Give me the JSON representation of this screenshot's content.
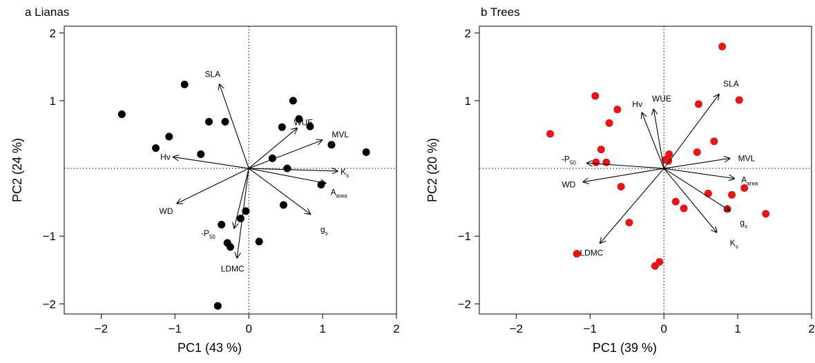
{
  "chart_data": [
    {
      "type": "scatter",
      "panel_title": "a Lianas",
      "xlabel": "PC1 (43 %)",
      "ylabel": "PC2 (24 %)",
      "xlim": [
        -2.5,
        2.0
      ],
      "ylim": [
        -2.15,
        2.1
      ],
      "xticks": [
        -2,
        -1,
        0,
        1,
        2
      ],
      "yticks": [
        -2,
        -1,
        1,
        2
      ],
      "point_color": "#000000",
      "points": [
        {
          "x": -1.72,
          "y": 0.8
        },
        {
          "x": -0.87,
          "y": 1.24
        },
        {
          "x": -1.08,
          "y": 0.47
        },
        {
          "x": -1.26,
          "y": 0.3
        },
        {
          "x": -0.54,
          "y": 0.69
        },
        {
          "x": -0.32,
          "y": 0.69
        },
        {
          "x": -0.65,
          "y": 0.21
        },
        {
          "x": 0.6,
          "y": 1.0
        },
        {
          "x": 0.45,
          "y": 0.61
        },
        {
          "x": 0.68,
          "y": 0.73
        },
        {
          "x": 0.83,
          "y": 0.62
        },
        {
          "x": 1.12,
          "y": 0.35
        },
        {
          "x": 1.59,
          "y": 0.24
        },
        {
          "x": 0.32,
          "y": 0.15
        },
        {
          "x": 0.52,
          "y": 0.0
        },
        {
          "x": 0.98,
          "y": -0.24
        },
        {
          "x": 0.47,
          "y": -0.54
        },
        {
          "x": -0.04,
          "y": -0.63
        },
        {
          "x": -0.11,
          "y": -0.74
        },
        {
          "x": -0.37,
          "y": -0.83
        },
        {
          "x": -0.29,
          "y": -1.1
        },
        {
          "x": -0.25,
          "y": -1.16
        },
        {
          "x": 0.14,
          "y": -1.08
        },
        {
          "x": -0.42,
          "y": -2.03
        }
      ],
      "loadings": [
        {
          "label": "SLA",
          "x": -0.4,
          "y": 1.25,
          "lx": -0.49,
          "ly": 1.39
        },
        {
          "label": "WUE",
          "x": 0.66,
          "y": 0.6,
          "lx": 0.74,
          "ly": 0.68
        },
        {
          "label": "MVL",
          "x": 1.0,
          "y": 0.42,
          "lx": 1.24,
          "ly": 0.5
        },
        {
          "label": "K",
          "sub": "s",
          "x": 1.21,
          "y": -0.04,
          "lx": 1.3,
          "ly": -0.05
        },
        {
          "label": "A",
          "sub": "area",
          "x": 1.05,
          "y": -0.22,
          "lx": 1.22,
          "ly": -0.35
        },
        {
          "label": "g",
          "sub": "s",
          "x": 0.84,
          "y": -0.68,
          "lx": 1.02,
          "ly": -0.9
        },
        {
          "label": "Hv",
          "x": -1.03,
          "y": 0.17,
          "lx": -1.13,
          "ly": 0.17
        },
        {
          "label": "WD",
          "x": -0.98,
          "y": -0.52,
          "lx": -1.12,
          "ly": -0.63
        },
        {
          "label": "-P",
          "sub": "50",
          "x": -0.2,
          "y": -0.89,
          "lx": -0.55,
          "ly": -0.96
        },
        {
          "label": "LDMC",
          "x": -0.16,
          "y": -1.33,
          "lx": -0.22,
          "ly": -1.48
        }
      ]
    },
    {
      "type": "scatter",
      "panel_title": "b Trees",
      "xlabel": "PC1 (39 %)",
      "ylabel": "PC2 (20 %)",
      "xlim": [
        -2.5,
        2.0
      ],
      "ylim": [
        -2.15,
        2.1
      ],
      "xticks": [
        -2,
        -1,
        0,
        1,
        2
      ],
      "yticks": [
        -2,
        -1,
        1,
        2
      ],
      "point_color": "#e81416",
      "points": [
        {
          "x": 0.79,
          "y": 1.8
        },
        {
          "x": 1.02,
          "y": 1.01
        },
        {
          "x": 0.47,
          "y": 0.95
        },
        {
          "x": -0.93,
          "y": 1.07
        },
        {
          "x": -0.63,
          "y": 0.87
        },
        {
          "x": -0.74,
          "y": 0.67
        },
        {
          "x": -1.54,
          "y": 0.51
        },
        {
          "x": -0.85,
          "y": 0.28
        },
        {
          "x": -0.92,
          "y": 0.09
        },
        {
          "x": -0.78,
          "y": 0.09
        },
        {
          "x": 0.07,
          "y": 0.21
        },
        {
          "x": 0.06,
          "y": 0.11
        },
        {
          "x": 0.02,
          "y": 0.13
        },
        {
          "x": 0.45,
          "y": 0.24
        },
        {
          "x": 0.68,
          "y": 0.4
        },
        {
          "x": -0.58,
          "y": -0.27
        },
        {
          "x": 0.6,
          "y": -0.37
        },
        {
          "x": 0.92,
          "y": -0.39
        },
        {
          "x": 1.09,
          "y": -0.29
        },
        {
          "x": 0.16,
          "y": -0.49
        },
        {
          "x": 0.27,
          "y": -0.59
        },
        {
          "x": 0.86,
          "y": -0.6
        },
        {
          "x": 1.38,
          "y": -0.67
        },
        {
          "x": -0.47,
          "y": -0.8
        },
        {
          "x": -1.18,
          "y": -1.26
        },
        {
          "x": -0.06,
          "y": -1.38
        },
        {
          "x": -0.12,
          "y": -1.44
        }
      ],
      "loadings": [
        {
          "label": "SLA",
          "x": 0.75,
          "y": 1.1,
          "lx": 0.91,
          "ly": 1.25
        },
        {
          "label": "WUE",
          "x": -0.14,
          "y": 0.88,
          "lx": -0.03,
          "ly": 1.03
        },
        {
          "label": "Hv",
          "x": -0.3,
          "y": 0.83,
          "lx": -0.36,
          "ly": 0.95
        },
        {
          "label": "MVL",
          "x": 0.9,
          "y": 0.15,
          "lx": 1.12,
          "ly": 0.15
        },
        {
          "label": "A",
          "sub": "area",
          "x": 0.96,
          "y": -0.15,
          "lx": 1.16,
          "ly": -0.17
        },
        {
          "label": "g",
          "sub": "s",
          "x": 0.9,
          "y": -0.63,
          "lx": 1.08,
          "ly": -0.8
        },
        {
          "label": "K",
          "sub": "s",
          "x": 0.72,
          "y": -0.95,
          "lx": 0.95,
          "ly": -1.1
        },
        {
          "label": "-P",
          "sub": "50",
          "x": -1.05,
          "y": 0.08,
          "lx": -1.29,
          "ly": 0.14
        },
        {
          "label": "WD",
          "x": -1.1,
          "y": -0.2,
          "lx": -1.29,
          "ly": -0.24
        },
        {
          "label": "LDMC",
          "x": -0.87,
          "y": -1.11,
          "lx": -0.98,
          "ly": -1.25
        }
      ]
    }
  ]
}
